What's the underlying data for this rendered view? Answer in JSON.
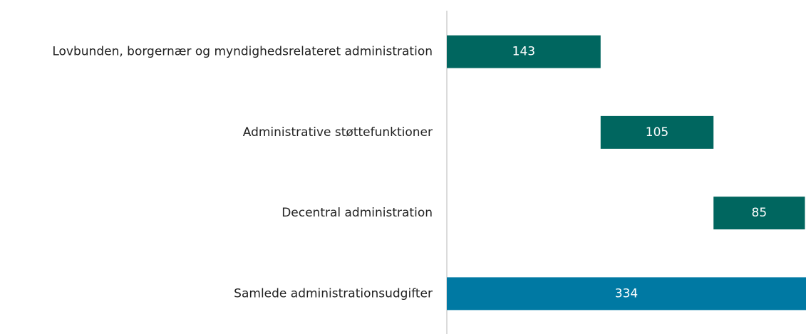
{
  "chart_data": {
    "type": "waterfall",
    "categories": [
      "Lovbunden, borgernær og myndighedsrelateret administration",
      "Administrative støttefunktioner",
      "Decentral administration",
      "Samlede administrationsudgifter"
    ],
    "values": [
      143,
      105,
      85,
      334
    ],
    "colors": [
      "#00665f",
      "#00665f",
      "#00665f",
      "#0079a3"
    ]
  }
}
